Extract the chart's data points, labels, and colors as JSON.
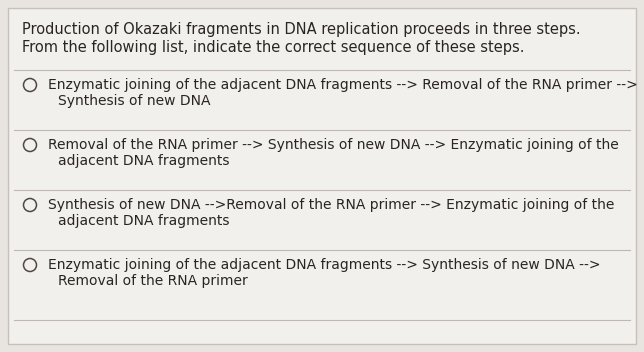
{
  "bg_color": "#e8e5e0",
  "card_color": "#f2f0ed",
  "border_color": "#c8c0b8",
  "title_lines": [
    "Production of Okazaki fragments in DNA replication proceeds in three steps.",
    "From the following list, indicate the correct sequence of these steps."
  ],
  "options": [
    {
      "line1": "Enzymatic joining of the adjacent DNA fragments --> Removal of the RNA primer -->",
      "line2": "Synthesis of new DNA"
    },
    {
      "line1": "Removal of the RNA primer --> Synthesis of new DNA --> Enzymatic joining of the",
      "line2": "adjacent DNA fragments"
    },
    {
      "line1": "Synthesis of new DNA -->Removal of the RNA primer --> Enzymatic joining of the",
      "line2": "adjacent DNA fragments"
    },
    {
      "line1": "Enzymatic joining of the adjacent DNA fragments --> Synthesis of new DNA -->",
      "line2": "Removal of the RNA primer"
    }
  ],
  "title_fontsize": 10.5,
  "option_fontsize": 10.0,
  "text_color": "#2a2520",
  "divider_color": "#c0b8b0",
  "circle_color": "#504840",
  "font_family": "DejaVu Sans"
}
